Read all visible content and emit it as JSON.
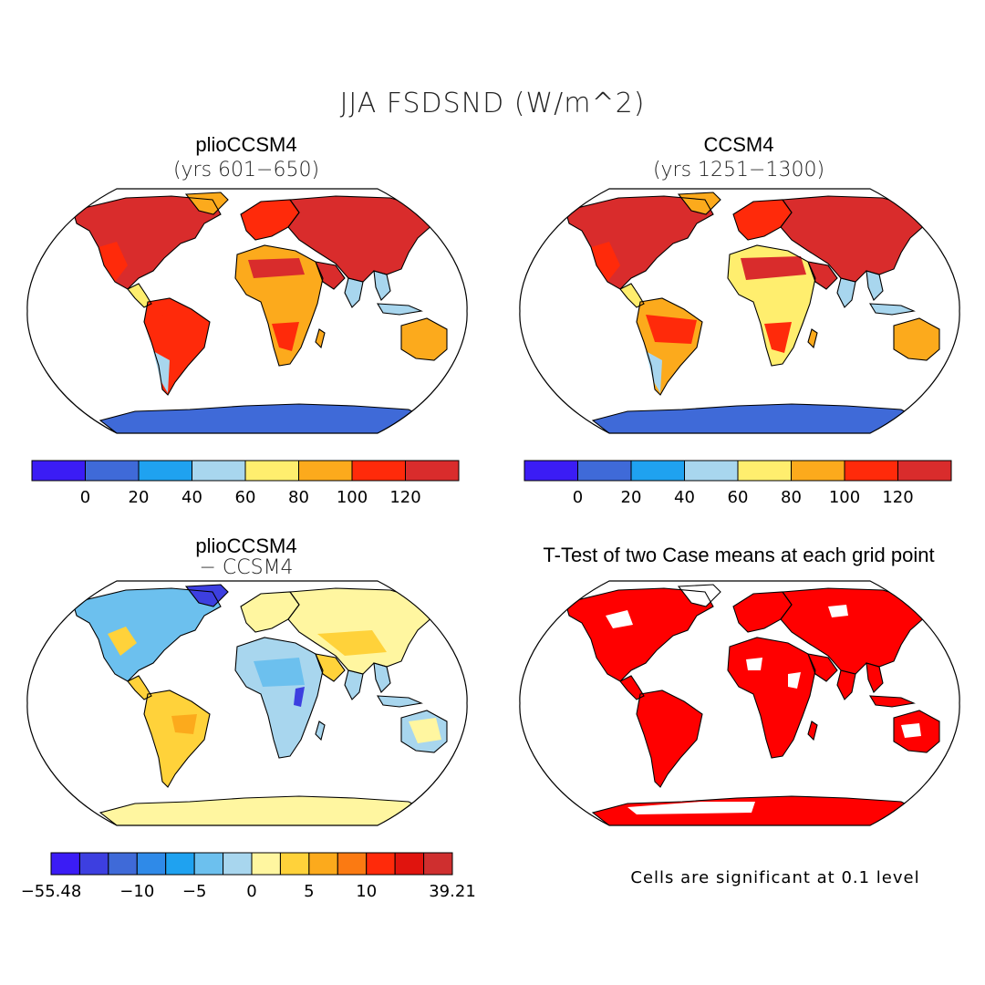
{
  "main_title": "JJA FSDSND (W/m^2)",
  "panels": [
    {
      "title": "plioCCSM4",
      "subtitle": "(yrs 601−650)"
    },
    {
      "title": "CCSM4",
      "subtitle": "(yrs 1251−1300)"
    },
    {
      "title": "plioCCSM4",
      "subtitle": "− CCSM4"
    },
    {
      "title": "T-Test of two Case means at each grid point",
      "subtitle": ""
    }
  ],
  "colorbar_abs": {
    "colors": [
      "#3b1cf5",
      "#3f6ad8",
      "#1fa2f0",
      "#a8d6ee",
      "#ffee6e",
      "#fcaa1c",
      "#ff2a0a",
      "#d92c2c"
    ],
    "labels": [
      "0",
      "20",
      "40",
      "60",
      "80",
      "100",
      "120"
    ]
  },
  "colorbar_diff": {
    "colors": [
      "#3b1cf5",
      "#3d3fe0",
      "#3f6ad8",
      "#2f8ae8",
      "#1fa2f0",
      "#6cc0ee",
      "#a8d6ee",
      "#fff6a0",
      "#ffd23a",
      "#fcaa1c",
      "#fb7a12",
      "#ff2a0a",
      "#e0140e",
      "#cf2f2f"
    ],
    "labels": [
      "−55.48",
      "−10",
      "−5",
      "0",
      "5",
      "10",
      "39.21"
    ]
  },
  "significance_note": "Cells are significant at 0.1 level",
  "palette": {
    "ocean": "#ffffff",
    "outline": "#000000",
    "signif": "#ff0000"
  }
}
